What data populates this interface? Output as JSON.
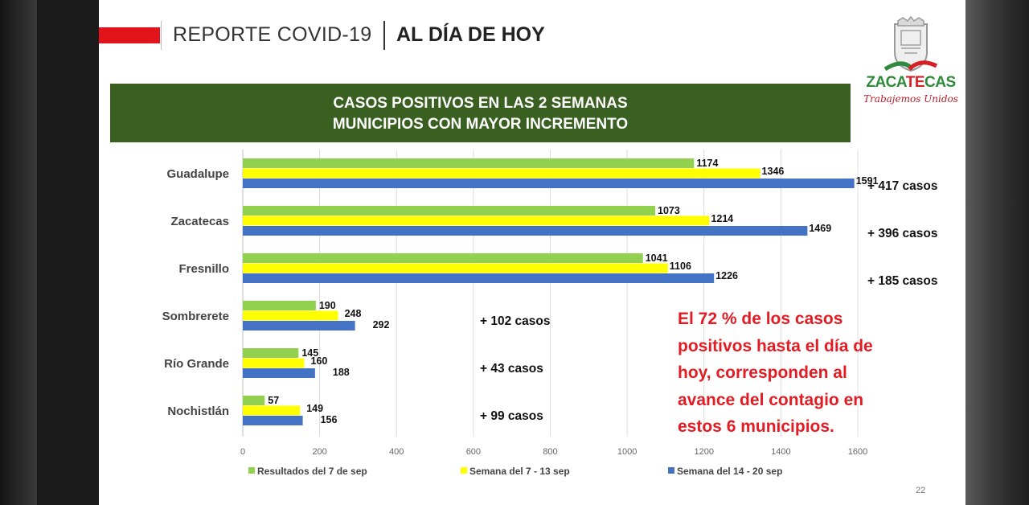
{
  "header": {
    "title": "REPORTE COVID-19",
    "subtitle": "AL DÍA DE HOY"
  },
  "banner": {
    "line1": "CASOS POSITIVOS EN LAS 2 SEMANAS",
    "line2": "MUNICIPIOS CON MAYOR INCREMENTO"
  },
  "logo": {
    "word_start": "ZACA",
    "word_mid": "TE",
    "word_end": "CAS",
    "motto": "Trabajemos Unidos"
  },
  "notes": [
    "El 72 % de los casos",
    "positivos hasta el día de",
    "hoy, corresponden al",
    "avance del contagio en",
    "estos 6 municipios."
  ],
  "page_number": "22",
  "colors": {
    "banner_green": "#3a6021",
    "accent_red": "#e3131b",
    "series_green": "#92d050",
    "series_yellow": "#ffff00",
    "series_blue": "#4472c4"
  },
  "chart_data": {
    "type": "bar",
    "orientation": "horizontal",
    "title": "CASOS POSITIVOS EN LAS 2 SEMANAS MUNICIPIOS CON MAYOR INCREMENTO",
    "categories": [
      "Guadalupe",
      "Zacatecas",
      "Fresnillo",
      "Sombrerete",
      "Río Grande",
      "Nochistlán"
    ],
    "series": [
      {
        "name": "Resultados del 7 de sep",
        "color": "#92d050",
        "values": [
          1174,
          1073,
          1041,
          190,
          145,
          57
        ]
      },
      {
        "name": "Semana del 7 - 13 sep",
        "color": "#ffff00",
        "values": [
          1346,
          1214,
          1106,
          248,
          160,
          149
        ]
      },
      {
        "name": "Semana del 14 - 20 sep",
        "color": "#4472c4",
        "values": [
          1591,
          1469,
          1226,
          292,
          188,
          156
        ]
      }
    ],
    "increments": [
      "+ 417 casos",
      "+ 396 casos",
      "+ 185 casos",
      "+ 102 casos",
      "+ 43 casos",
      "+ 99 casos"
    ],
    "xticks": [
      0,
      200,
      400,
      600,
      800,
      1000,
      1200,
      1400,
      1600
    ],
    "xlim": [
      0,
      1600
    ],
    "xlabel": "",
    "ylabel": "",
    "grid": true,
    "legend_position": "bottom"
  }
}
